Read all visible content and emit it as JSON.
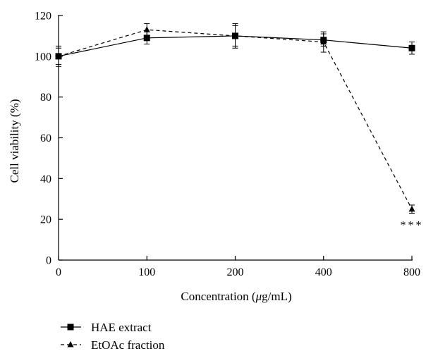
{
  "chart_data": {
    "type": "line",
    "x": [
      0,
      100,
      200,
      400,
      800
    ],
    "x_tick_labels": [
      "0",
      "100",
      "200",
      "400",
      "800"
    ],
    "xlabel_prefix": "Concentration (",
    "xlabel_mu": "μ",
    "xlabel_suffix": "g/mL)",
    "ylabel": "Cell viability (%)",
    "ylim": [
      0,
      120
    ],
    "y_ticks": [
      0,
      20,
      40,
      60,
      80,
      100,
      120
    ],
    "y_tick_labels": [
      "0",
      "20",
      "40",
      "60",
      "80",
      "100",
      "120"
    ],
    "grid": false,
    "legend_position": "bottom-left",
    "series": [
      {
        "name": "HAE extract",
        "marker": "square",
        "line_style": "solid",
        "values": [
          100,
          109,
          110,
          108,
          104
        ],
        "errors": [
          5,
          3,
          5,
          3,
          3
        ]
      },
      {
        "name": "EtOAc fraction",
        "marker": "triangle",
        "line_style": "dashed",
        "values": [
          100,
          113,
          110,
          107,
          25
        ],
        "errors": [
          4,
          3,
          6,
          5,
          2
        ]
      }
    ],
    "annotations": [
      {
        "text": "***",
        "x": 800,
        "series": "EtOAc fraction"
      }
    ]
  }
}
